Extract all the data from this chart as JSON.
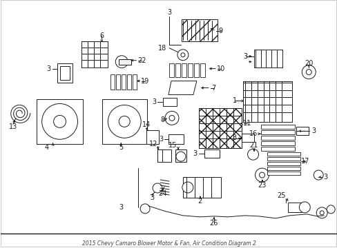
{
  "title": "2015 Chevy Camaro Blower Motor & Fan, Air Condition Diagram 2",
  "background_color": "#ffffff",
  "line_color": "#1a1a1a",
  "figsize": [
    4.89,
    3.6
  ],
  "dpi": 100,
  "border_color": "#cccccc",
  "label_fontsize": 7.0,
  "label_color": "#1a1a1a"
}
